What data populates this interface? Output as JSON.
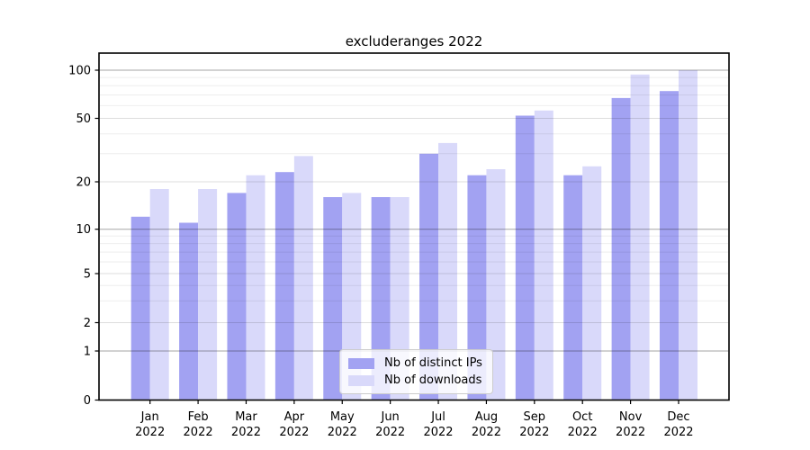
{
  "chart_data": {
    "type": "bar",
    "title": "excluderanges 2022",
    "x": [
      "Jan",
      "Feb",
      "Mar",
      "Apr",
      "May",
      "Jun",
      "Jul",
      "Aug",
      "Sep",
      "Oct",
      "Nov",
      "Dec"
    ],
    "x_second_line": "2022",
    "categories": [
      "Jan 2022",
      "Feb 2022",
      "Mar 2022",
      "Apr 2022",
      "May 2022",
      "Jun 2022",
      "Jul 2022",
      "Aug 2022",
      "Sep 2022",
      "Oct 2022",
      "Nov 2022",
      "Dec 2022"
    ],
    "series": [
      {
        "name": "Nb of distinct IPs",
        "color": "#a2a2f2",
        "values": [
          12,
          11,
          17,
          23,
          16,
          16,
          30,
          22,
          52,
          22,
          67,
          74
        ]
      },
      {
        "name": "Nb of downloads",
        "color": "#d9d9fa",
        "values": [
          18,
          18,
          22,
          29,
          17,
          16,
          35,
          24,
          56,
          25,
          94,
          100
        ]
      }
    ],
    "yscale": "log-like",
    "yticks": [
      0,
      1,
      2,
      5,
      10,
      20,
      50,
      100
    ],
    "ytick_labels": [
      "0",
      "1",
      "2",
      "5",
      "10",
      "20",
      "50",
      "100"
    ],
    "ylim": [
      0,
      105
    ],
    "grid": true,
    "legend_position": "lower center"
  }
}
